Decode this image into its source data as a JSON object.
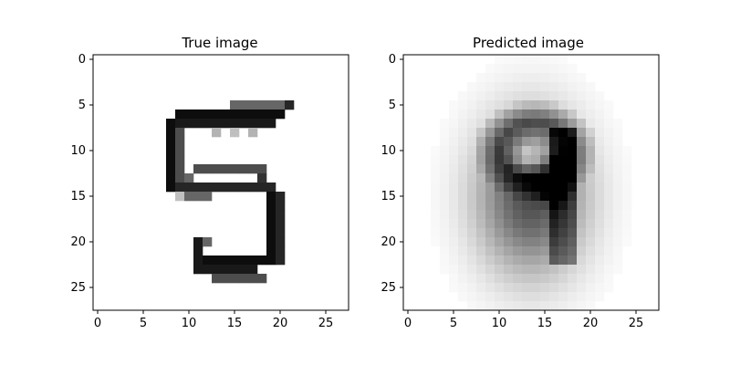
{
  "panels": [
    {
      "title": "True image",
      "x_ticks": [
        "0",
        "5",
        "10",
        "15",
        "20",
        "25"
      ],
      "y_ticks": [
        "0",
        "5",
        "10",
        "15",
        "20",
        "25"
      ],
      "image_grid": "28x28 grayscale",
      "content": "handwritten digit five, sharp dark strokes on white"
    },
    {
      "title": "Predicted image",
      "x_ticks": [
        "0",
        "5",
        "10",
        "15",
        "20",
        "25"
      ],
      "y_ticks": [
        "0",
        "5",
        "10",
        "15",
        "20",
        "25"
      ],
      "image_grid": "28x28 grayscale",
      "content": "blurry dark digit resembling nine, soft gray halo"
    }
  ],
  "colors": {
    "ink": "#000000",
    "background": "#ffffff"
  }
}
